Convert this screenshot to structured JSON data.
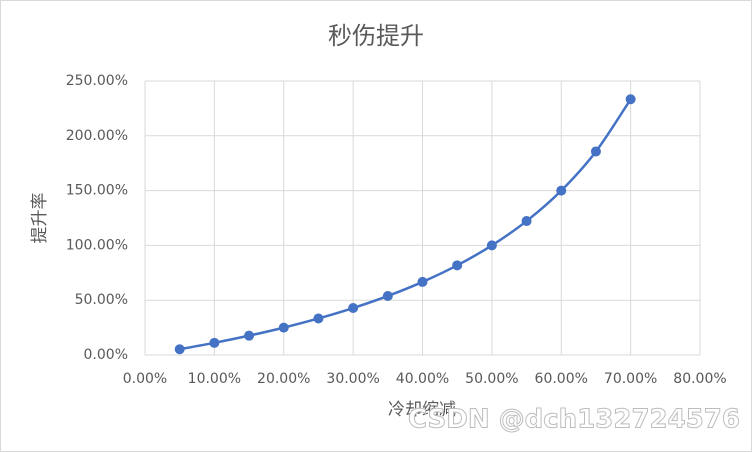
{
  "chart_data": {
    "type": "line",
    "title": "秒伤提升",
    "x_label": "冷却缩减",
    "y_label": "提升率",
    "watermark": "CSDN @dch132724576",
    "x": [
      5,
      10,
      15,
      20,
      25,
      30,
      35,
      40,
      45,
      50,
      55,
      60,
      65,
      70
    ],
    "series": [
      {
        "name": "提升率",
        "color": "#4472c4",
        "values": [
          5.26,
          11.11,
          17.65,
          25,
          33.33,
          42.86,
          53.85,
          66.67,
          81.82,
          100,
          122.22,
          150,
          185.71,
          233.33
        ]
      }
    ],
    "xlim": [
      0,
      80
    ],
    "xticks": [
      {
        "value": 0,
        "label": "0.00%"
      },
      {
        "value": 10,
        "label": "10.00%"
      },
      {
        "value": 20,
        "label": "20.00%"
      },
      {
        "value": 30,
        "label": "30.00%"
      },
      {
        "value": 40,
        "label": "40.00%"
      },
      {
        "value": 50,
        "label": "50.00%"
      },
      {
        "value": 60,
        "label": "60.00%"
      },
      {
        "value": 70,
        "label": "70.00%"
      },
      {
        "value": 80,
        "label": "80.00%"
      }
    ],
    "ylim": [
      0,
      250
    ],
    "yticks": [
      {
        "value": 0,
        "label": "0.00%"
      },
      {
        "value": 50,
        "label": "50.00%"
      },
      {
        "value": 100,
        "label": "100.00%"
      },
      {
        "value": 150,
        "label": "150.00%"
      },
      {
        "value": 200,
        "label": "200.00%"
      },
      {
        "value": 250,
        "label": "250.00%"
      }
    ],
    "grid": true,
    "smooth": true
  }
}
